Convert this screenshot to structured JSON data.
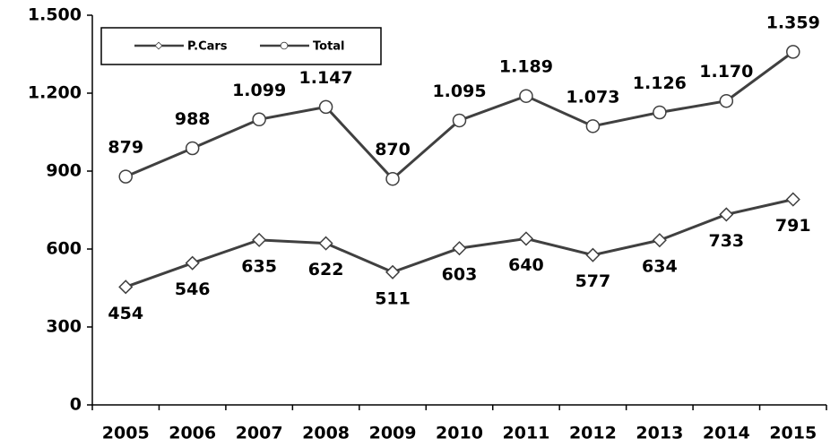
{
  "chart_data": {
    "type": "line",
    "categories": [
      "2005",
      "2006",
      "2007",
      "2008",
      "2009",
      "2010",
      "2011",
      "2012",
      "2013",
      "2014",
      "2015"
    ],
    "series": [
      {
        "name": "P.Cars",
        "color": "#404040",
        "marker": "diamond",
        "values": [
          454,
          546,
          635,
          622,
          511,
          603,
          640,
          577,
          634,
          733,
          791
        ]
      },
      {
        "name": "Total",
        "color": "#404040",
        "marker": "circle",
        "values": [
          879,
          988,
          1099,
          1147,
          870,
          1095,
          1189,
          1073,
          1126,
          1170,
          1359
        ],
        "value_labels": [
          "879",
          "988",
          "1.099",
          "1.147",
          "870",
          "1.095",
          "1.189",
          "1.073",
          "1.126",
          "1.170",
          "1.359"
        ]
      }
    ],
    "ylim": [
      0,
      1500
    ],
    "yticks": [
      0,
      300,
      600,
      900,
      {
        "value": 1200,
        "label": "1.200"
      },
      {
        "value": 1500,
        "label": "1.500"
      }
    ],
    "grid": false,
    "legend": "top-left"
  }
}
